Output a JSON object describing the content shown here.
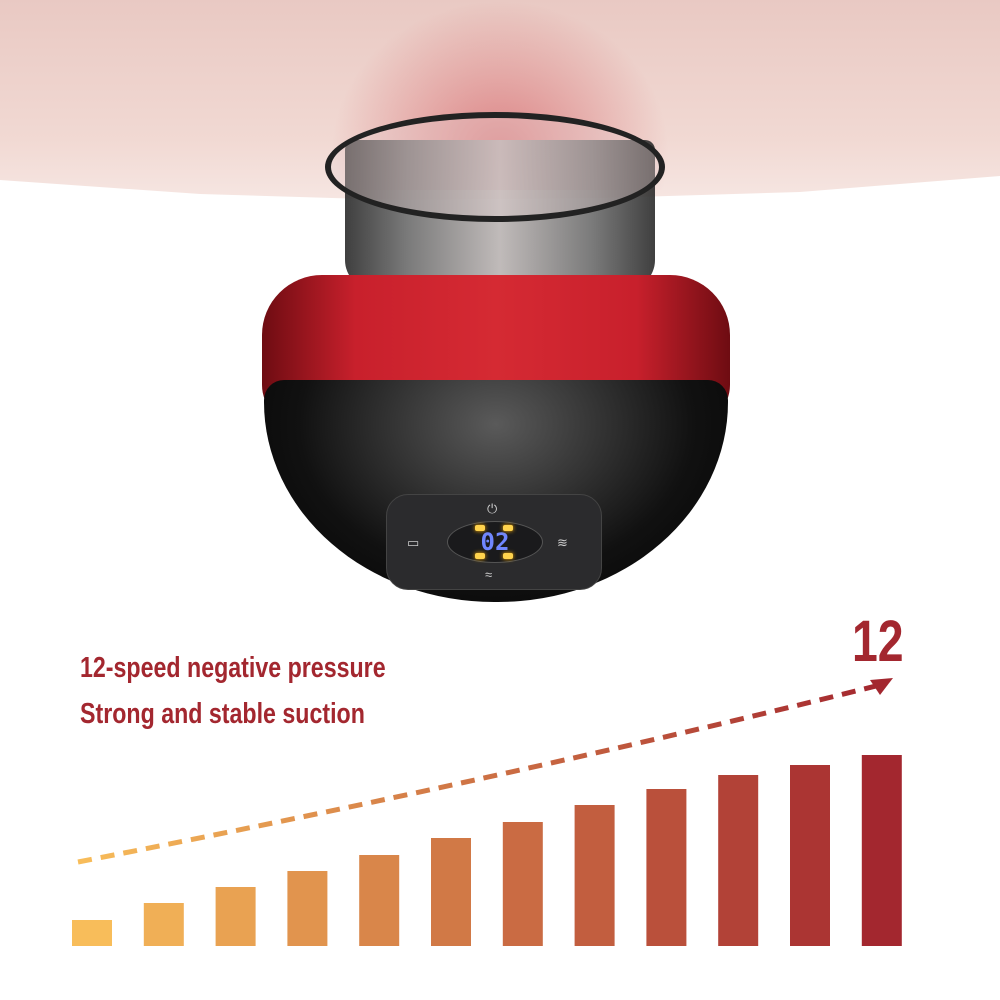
{
  "product": {
    "display_value": "02",
    "icons": [
      "power-icon",
      "heat-icon",
      "mode-icon",
      "wave-icon"
    ]
  },
  "headline": {
    "line1": "12-speed negative pressure",
    "line2": "Strong and stable suction",
    "max_level": "12"
  },
  "colors": {
    "accent": "#a3272f",
    "bar_start": "#f8bd5a",
    "bar_end": "#a3272f"
  },
  "chart_data": {
    "type": "bar",
    "levels": [
      1,
      2,
      3,
      4,
      5,
      6,
      7,
      8,
      9,
      10,
      11,
      12
    ],
    "trend": "increasing",
    "arrow": "dashed"
  }
}
